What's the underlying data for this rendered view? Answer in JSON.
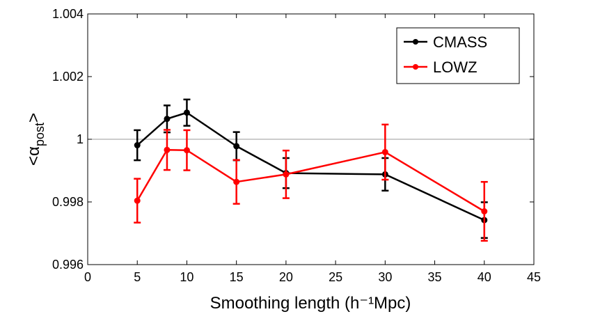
{
  "chart_data": {
    "type": "line",
    "title": "",
    "xlabel": "Smoothing length (h⁻¹Mpc)",
    "ylabel": "<α_post>",
    "ylabel_main": "<α",
    "ylabel_sub": "post",
    "ylabel_end": ">",
    "xlim": [
      0,
      45
    ],
    "ylim": [
      0.996,
      1.004
    ],
    "xticks": [
      0,
      5,
      10,
      15,
      20,
      25,
      30,
      35,
      40,
      45
    ],
    "xtick_labels": [
      "0",
      "5",
      "10",
      "15",
      "20",
      "25",
      "30",
      "35",
      "40",
      "45"
    ],
    "yticks": [
      0.996,
      0.998,
      1.0,
      1.002,
      1.004
    ],
    "ytick_labels": [
      "0.996",
      "0.998",
      "1",
      "1.002",
      "1.004"
    ],
    "reference_line": 1.0,
    "legend_position": "top-right",
    "series": [
      {
        "name": "CMASS",
        "color": "#000000",
        "x": [
          5,
          8,
          10,
          15,
          20,
          30,
          40
        ],
        "y": [
          0.99981,
          1.00065,
          1.00085,
          0.99978,
          0.99892,
          0.99888,
          0.99742
        ],
        "err": [
          0.00048,
          0.00043,
          0.00042,
          0.00045,
          0.00048,
          0.00052,
          0.00057
        ]
      },
      {
        "name": "LOWZ",
        "color": "#ff0000",
        "x": [
          5,
          8,
          10,
          15,
          20,
          30,
          40
        ],
        "y": [
          0.99804,
          0.99966,
          0.99965,
          0.99864,
          0.99888,
          0.99959,
          0.9977
        ],
        "err": [
          0.0007,
          0.00064,
          0.00064,
          0.0007,
          0.00076,
          0.00088,
          0.00094
        ]
      }
    ]
  }
}
